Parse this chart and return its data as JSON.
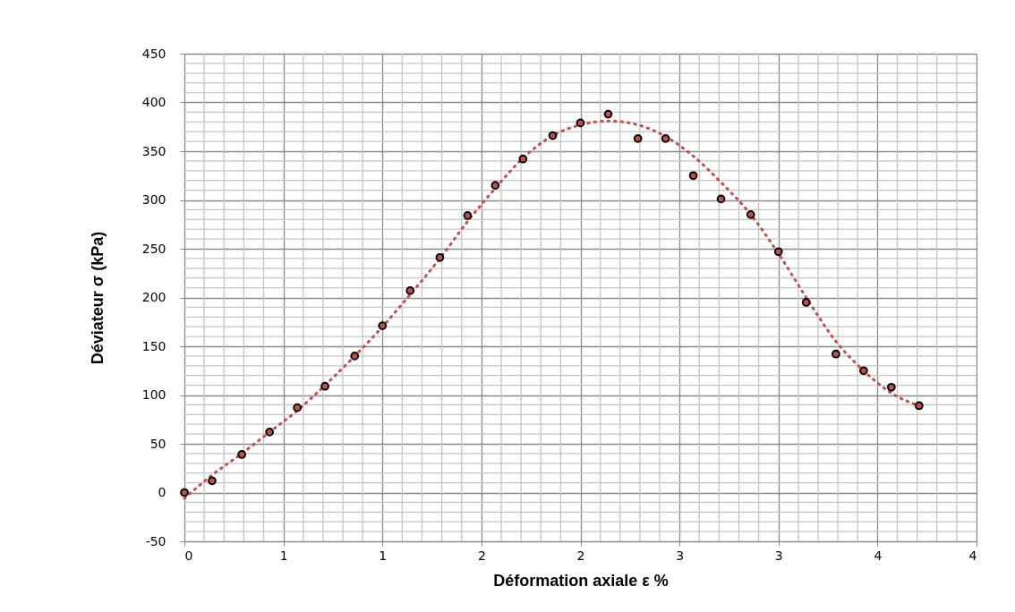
{
  "chart_data": {
    "type": "scatter",
    "xlabel": "Déformation axiale ε %",
    "ylabel": "Déviateur σ (kPa)",
    "xlim": [
      0,
      4
    ],
    "ylim": [
      -50,
      450
    ],
    "xticks": [
      0,
      {
        "value": 0.1,
        "label": null
      },
      {
        "value": 0.2,
        "label": null
      },
      {
        "value": 0.3,
        "label": null
      },
      {
        "value": 0.4,
        "label": null
      },
      {
        "value": 0.5,
        "label": "1"
      },
      {
        "value": 0.6,
        "label": null
      },
      {
        "value": 0.7,
        "label": null
      },
      {
        "value": 0.8,
        "label": null
      },
      {
        "value": 0.9,
        "label": null
      },
      1,
      {
        "value": 1.1,
        "label": null
      },
      {
        "value": 1.2,
        "label": null
      },
      {
        "value": 1.3,
        "label": null
      },
      {
        "value": 1.4,
        "label": null
      },
      {
        "value": 1.5,
        "label": "2"
      },
      {
        "value": 1.6,
        "label": null
      },
      {
        "value": 1.7,
        "label": null
      },
      {
        "value": 1.8,
        "label": null
      },
      {
        "value": 1.9,
        "label": null
      },
      2,
      {
        "value": 2.1,
        "label": null
      },
      {
        "value": 2.2,
        "label": null
      },
      {
        "value": 2.3,
        "label": null
      },
      {
        "value": 2.4,
        "label": null
      },
      {
        "value": 2.5,
        "label": "3"
      },
      {
        "value": 2.6,
        "label": null
      },
      {
        "value": 2.7,
        "label": null
      },
      {
        "value": 2.8,
        "label": null
      },
      {
        "value": 2.9,
        "label": null
      },
      3,
      {
        "value": 3.1,
        "label": null
      },
      {
        "value": 3.2,
        "label": null
      },
      {
        "value": 3.3,
        "label": null
      },
      {
        "value": 3.4,
        "label": null
      },
      {
        "value": 3.5,
        "label": "4"
      },
      {
        "value": 3.6,
        "label": null
      },
      {
        "value": 3.7,
        "label": null
      },
      {
        "value": 3.8,
        "label": null
      },
      {
        "value": 3.9,
        "label": null
      },
      4
    ],
    "yticks": [
      -50,
      {
        "value": -40,
        "label": null
      },
      {
        "value": -30,
        "label": null
      },
      {
        "value": -20,
        "label": null
      },
      {
        "value": -10,
        "label": null
      },
      0,
      {
        "value": 10,
        "label": null
      },
      {
        "value": 20,
        "label": null
      },
      {
        "value": 30,
        "label": null
      },
      {
        "value": 40,
        "label": null
      },
      50,
      {
        "value": 60,
        "label": null
      },
      {
        "value": 70,
        "label": null
      },
      {
        "value": 80,
        "label": null
      },
      {
        "value": 90,
        "label": null
      },
      100,
      {
        "value": 110,
        "label": null
      },
      {
        "value": 120,
        "label": null
      },
      {
        "value": 130,
        "label": null
      },
      {
        "value": 140,
        "label": null
      },
      150,
      {
        "value": 160,
        "label": null
      },
      {
        "value": 170,
        "label": null
      },
      {
        "value": 180,
        "label": null
      },
      {
        "value": 190,
        "label": null
      },
      200,
      {
        "value": 210,
        "label": null
      },
      {
        "value": 220,
        "label": null
      },
      {
        "value": 230,
        "label": null
      },
      {
        "value": 240,
        "label": null
      },
      250,
      {
        "value": 260,
        "label": null
      },
      {
        "value": 270,
        "label": null
      },
      {
        "value": 280,
        "label": null
      },
      {
        "value": 290,
        "label": null
      },
      300,
      {
        "value": 310,
        "label": null
      },
      {
        "value": 320,
        "label": null
      },
      {
        "value": 330,
        "label": null
      },
      {
        "value": 340,
        "label": null
      },
      350,
      {
        "value": 360,
        "label": null
      },
      {
        "value": 370,
        "label": null
      },
      {
        "value": 380,
        "label": null
      },
      {
        "value": 390,
        "label": null
      },
      400,
      {
        "value": 410,
        "label": null
      },
      {
        "value": 420,
        "label": null
      },
      {
        "value": 430,
        "label": null
      },
      {
        "value": 440,
        "label": null
      },
      450
    ],
    "grid": true,
    "marker": "circle",
    "series": [
      {
        "type": "line",
        "color": "#c0504d",
        "line_style": "dotted",
        "marker": "none",
        "x": [
          0,
          0.14,
          0.29,
          0.43,
          0.57,
          0.71,
          0.86,
          1.0,
          1.14,
          1.29,
          1.43,
          1.57,
          1.71,
          1.86,
          2.0,
          2.14,
          2.29,
          2.43,
          2.57,
          2.71,
          2.86,
          3.0,
          3.14,
          3.29,
          3.43,
          3.57,
          3.71
        ],
        "values": [
          -6,
          18,
          40,
          62,
          84,
          110,
          140,
          170,
          203,
          240,
          278,
          312,
          343,
          366,
          377,
          381,
          377,
          365,
          345,
          318,
          285,
          245,
          200,
          155,
          125,
          102,
          89
        ]
      },
      {
        "color": "#c0504d",
        "x": [
          0,
          0.14,
          0.29,
          0.43,
          0.57,
          0.71,
          0.86,
          1.0,
          1.14,
          1.29,
          1.43,
          1.57,
          1.71,
          1.86,
          2.0,
          2.14,
          2.29,
          2.43,
          2.57,
          2.71,
          2.86,
          3.0,
          3.14,
          3.29,
          3.43,
          3.57,
          3.71
        ],
        "values": [
          0,
          12,
          39,
          62,
          87,
          109,
          140,
          171,
          207,
          241,
          284,
          315,
          342,
          366,
          379,
          388,
          363,
          363,
          325,
          301,
          285,
          247,
          195,
          142,
          125,
          108,
          89
        ]
      }
    ]
  }
}
